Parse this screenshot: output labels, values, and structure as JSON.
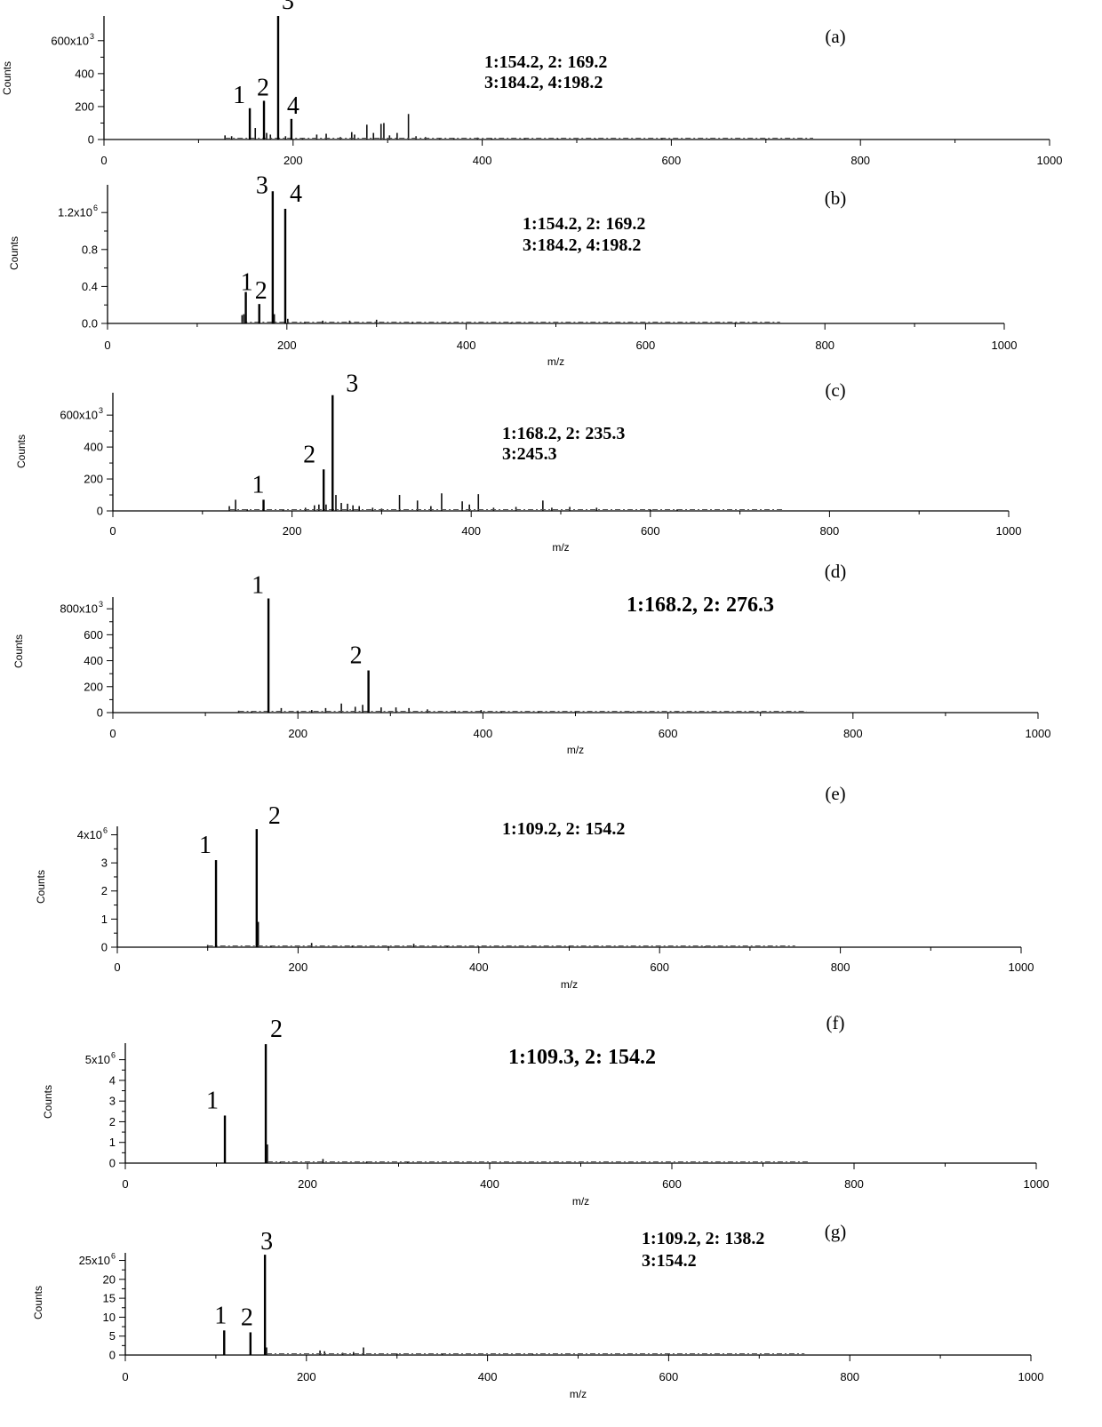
{
  "chart_data": [
    {
      "type": "bar",
      "panel": "(a)",
      "ylabel": "Counts",
      "xlabel": "",
      "xlim": [
        0,
        1000
      ],
      "xticks": [
        "0",
        "200",
        "400",
        "600",
        "800",
        "1000"
      ],
      "ylim": [
        0,
        750
      ],
      "yticks": [
        "0",
        "200",
        "400",
        "600x10^3"
      ],
      "yticks_visible": [
        {
          "v": 0,
          "t": "0"
        },
        {
          "v": 200,
          "t": "200"
        },
        {
          "v": 400,
          "t": "400"
        },
        {
          "v": 600,
          "t": "600x10",
          "exp": "3"
        }
      ],
      "annotation": [
        "1:154.2, 2: 169.2",
        "3:184.2, 4:198.2"
      ],
      "peaks": [
        {
          "label": "1",
          "mz": 154.2,
          "value": 190
        },
        {
          "label": "2",
          "mz": 169.2,
          "value": 235
        },
        {
          "label": "3",
          "mz": 184.2,
          "value": 750
        },
        {
          "label": "4",
          "mz": 198.2,
          "value": 125
        }
      ],
      "minor_peaks": [
        [
          128,
          25
        ],
        [
          135,
          20
        ],
        [
          160,
          70
        ],
        [
          172,
          40
        ],
        [
          176,
          30
        ],
        [
          192,
          20
        ],
        [
          210,
          10
        ],
        [
          225,
          30
        ],
        [
          235,
          35
        ],
        [
          250,
          15
        ],
        [
          262,
          45
        ],
        [
          265,
          30
        ],
        [
          278,
          90
        ],
        [
          285,
          40
        ],
        [
          293,
          95
        ],
        [
          296,
          100
        ],
        [
          302,
          25
        ],
        [
          310,
          40
        ],
        [
          322,
          155
        ],
        [
          330,
          20
        ],
        [
          340,
          15
        ],
        [
          355,
          10
        ],
        [
          370,
          10
        ],
        [
          395,
          12
        ],
        [
          410,
          8
        ],
        [
          445,
          10
        ],
        [
          480,
          5
        ],
        [
          520,
          5
        ],
        [
          590,
          10
        ],
        [
          640,
          5
        ],
        [
          700,
          5
        ]
      ]
    },
    {
      "type": "bar",
      "panel": "(b)",
      "ylabel": "Counts",
      "xlabel": "m/z",
      "xlim": [
        0,
        1000
      ],
      "xticks": [
        "0",
        "200",
        "400",
        "600",
        "800",
        "1000"
      ],
      "ylim": [
        0,
        1.5
      ],
      "yticks_visible": [
        {
          "v": 0,
          "t": "0.0"
        },
        {
          "v": 0.4,
          "t": "0.4"
        },
        {
          "v": 0.8,
          "t": "0.8"
        },
        {
          "v": 1.2,
          "t": "1.2x10",
          "exp": "6"
        }
      ],
      "annotation": [
        "1:154.2, 2: 169.2",
        "3:184.2, 4:198.2"
      ],
      "peaks": [
        {
          "label": "1",
          "mz": 154.2,
          "value": 0.34
        },
        {
          "label": "2",
          "mz": 169.2,
          "value": 0.21
        },
        {
          "label": "3",
          "mz": 184.2,
          "value": 1.43
        },
        {
          "label": "4",
          "mz": 198.2,
          "value": 1.24
        }
      ],
      "minor_peaks": [
        [
          150,
          0.09
        ],
        [
          152,
          0.1
        ],
        [
          186,
          0.1
        ],
        [
          201,
          0.05
        ],
        [
          220,
          0.02
        ],
        [
          240,
          0.03
        ],
        [
          270,
          0.03
        ],
        [
          300,
          0.04
        ],
        [
          340,
          0.02
        ],
        [
          380,
          0.01
        ],
        [
          450,
          0.01
        ],
        [
          560,
          0.01
        ],
        [
          700,
          0.01
        ]
      ]
    },
    {
      "type": "bar",
      "panel": "(c)",
      "ylabel": "Counts",
      "xlabel": "m/z",
      "xlim": [
        0,
        1000
      ],
      "xticks": [
        "0",
        "200",
        "400",
        "600",
        "800",
        "1000"
      ],
      "ylim": [
        0,
        740
      ],
      "yticks_visible": [
        {
          "v": 0,
          "t": "0"
        },
        {
          "v": 200,
          "t": "200"
        },
        {
          "v": 400,
          "t": "400"
        },
        {
          "v": 600,
          "t": "600x10",
          "exp": "3"
        }
      ],
      "annotation": [
        "1:168.2, 2: 235.3",
        "3:245.3"
      ],
      "peaks": [
        {
          "label": "1",
          "mz": 168.2,
          "value": 70
        },
        {
          "label": "2",
          "mz": 235.3,
          "value": 260
        },
        {
          "label": "3",
          "mz": 245.3,
          "value": 725
        }
      ],
      "minor_peaks": [
        [
          130,
          30
        ],
        [
          137,
          70
        ],
        [
          150,
          10
        ],
        [
          190,
          10
        ],
        [
          215,
          20
        ],
        [
          225,
          35
        ],
        [
          230,
          40
        ],
        [
          238,
          40
        ],
        [
          249,
          100
        ],
        [
          255,
          50
        ],
        [
          262,
          45
        ],
        [
          268,
          35
        ],
        [
          275,
          30
        ],
        [
          290,
          20
        ],
        [
          300,
          15
        ],
        [
          320,
          100
        ],
        [
          340,
          65
        ],
        [
          355,
          30
        ],
        [
          367,
          110
        ],
        [
          390,
          60
        ],
        [
          398,
          40
        ],
        [
          408,
          105
        ],
        [
          425,
          20
        ],
        [
          450,
          25
        ],
        [
          480,
          65
        ],
        [
          490,
          20
        ],
        [
          510,
          25
        ],
        [
          540,
          20
        ],
        [
          600,
          10
        ],
        [
          630,
          10
        ]
      ]
    },
    {
      "type": "bar",
      "panel": "(d)",
      "ylabel": "Counts",
      "xlabel": "m/z",
      "xlim": [
        0,
        1000
      ],
      "xticks": [
        "0",
        "200",
        "400",
        "600",
        "800",
        "1000"
      ],
      "ylim": [
        0,
        890
      ],
      "yticks_visible": [
        {
          "v": 0,
          "t": "0"
        },
        {
          "v": 200,
          "t": "200"
        },
        {
          "v": 400,
          "t": "400"
        },
        {
          "v": 600,
          "t": "600"
        },
        {
          "v": 800,
          "t": "800x10",
          "exp": "3"
        }
      ],
      "annotation": [
        "1:168.2, 2: 276.3"
      ],
      "peaks": [
        {
          "label": "1",
          "mz": 168.2,
          "value": 880
        },
        {
          "label": "2",
          "mz": 276.3,
          "value": 325
        }
      ],
      "minor_peaks": [
        [
          136,
          15
        ],
        [
          150,
          10
        ],
        [
          182,
          35
        ],
        [
          200,
          15
        ],
        [
          215,
          20
        ],
        [
          230,
          35
        ],
        [
          247,
          70
        ],
        [
          262,
          45
        ],
        [
          270,
          60
        ],
        [
          290,
          40
        ],
        [
          306,
          40
        ],
        [
          320,
          35
        ],
        [
          340,
          25
        ],
        [
          370,
          15
        ],
        [
          398,
          20
        ],
        [
          420,
          10
        ],
        [
          460,
          10
        ],
        [
          500,
          8
        ],
        [
          560,
          8
        ],
        [
          610,
          5
        ],
        [
          700,
          5
        ]
      ]
    },
    {
      "type": "bar",
      "panel": "(e)",
      "ylabel": "Counts",
      "xlabel": "m/z",
      "xlim": [
        0,
        1000
      ],
      "xticks": [
        "0",
        "200",
        "400",
        "600",
        "800",
        "1000"
      ],
      "ylim": [
        0,
        4.3
      ],
      "yticks_visible": [
        {
          "v": 0,
          "t": "0"
        },
        {
          "v": 1,
          "t": "1"
        },
        {
          "v": 2,
          "t": "2"
        },
        {
          "v": 3,
          "t": "3"
        },
        {
          "v": 4,
          "t": "4x10",
          "exp": "6"
        }
      ],
      "annotation": [
        "1:109.2, 2: 154.2"
      ],
      "peaks": [
        {
          "label": "1",
          "mz": 109.2,
          "value": 3.1
        },
        {
          "label": "2",
          "mz": 154.2,
          "value": 4.2
        }
      ],
      "minor_peaks": [
        [
          100,
          0.08
        ],
        [
          156,
          0.9
        ],
        [
          170,
          0.05
        ],
        [
          215,
          0.15
        ],
        [
          260,
          0.06
        ],
        [
          300,
          0.04
        ],
        [
          328,
          0.12
        ],
        [
          365,
          0.06
        ],
        [
          400,
          0.03
        ],
        [
          500,
          0.03
        ],
        [
          650,
          0.03
        ]
      ]
    },
    {
      "type": "bar",
      "panel": "(f)",
      "ylabel": "Counts",
      "xlabel": "m/z",
      "xlim": [
        0,
        1000
      ],
      "xticks": [
        "0",
        "200",
        "400",
        "600",
        "800",
        "1000"
      ],
      "ylim": [
        0,
        5.8
      ],
      "yticks_visible": [
        {
          "v": 0,
          "t": "0"
        },
        {
          "v": 1,
          "t": "1"
        },
        {
          "v": 2,
          "t": "2"
        },
        {
          "v": 3,
          "t": "3"
        },
        {
          "v": 4,
          "t": "4"
        },
        {
          "v": 5,
          "t": "5x10",
          "exp": "6"
        }
      ],
      "annotation": [
        "1:109.3, 2: 154.2"
      ],
      "peaks": [
        {
          "label": "1",
          "mz": 109.3,
          "value": 2.3
        },
        {
          "label": "2",
          "mz": 154.2,
          "value": 5.75
        }
      ],
      "minor_peaks": [
        [
          156,
          0.9
        ],
        [
          170,
          0.05
        ],
        [
          217,
          0.2
        ],
        [
          265,
          0.08
        ],
        [
          310,
          0.06
        ],
        [
          400,
          0.03
        ],
        [
          500,
          0.02
        ]
      ]
    },
    {
      "type": "bar",
      "panel": "(g)",
      "ylabel": "Counts",
      "xlabel": "m/z",
      "xlim": [
        0,
        1000
      ],
      "xticks": [
        "0",
        "200",
        "400",
        "600",
        "800",
        "1000"
      ],
      "ylim": [
        0,
        27
      ],
      "yticks_visible": [
        {
          "v": 0,
          "t": "0"
        },
        {
          "v": 5,
          "t": "5"
        },
        {
          "v": 10,
          "t": "10"
        },
        {
          "v": 15,
          "t": "15"
        },
        {
          "v": 20,
          "t": "20"
        },
        {
          "v": 25,
          "t": "25x10",
          "exp": "6"
        }
      ],
      "annotation": [
        "1:109.2, 2: 138.2",
        "3:154.2"
      ],
      "peaks": [
        {
          "label": "1",
          "mz": 109.2,
          "value": 6.5
        },
        {
          "label": "2",
          "mz": 138.2,
          "value": 6.0
        },
        {
          "label": "3",
          "mz": 154.2,
          "value": 26.5
        }
      ],
      "minor_peaks": [
        [
          156,
          2.0
        ],
        [
          215,
          1.2
        ],
        [
          220,
          1.0
        ],
        [
          240,
          0.6
        ],
        [
          252,
          0.8
        ],
        [
          263,
          2.0
        ],
        [
          300,
          0.4
        ],
        [
          350,
          0.3
        ],
        [
          450,
          0.2
        ],
        [
          600,
          0.2
        ]
      ]
    }
  ]
}
